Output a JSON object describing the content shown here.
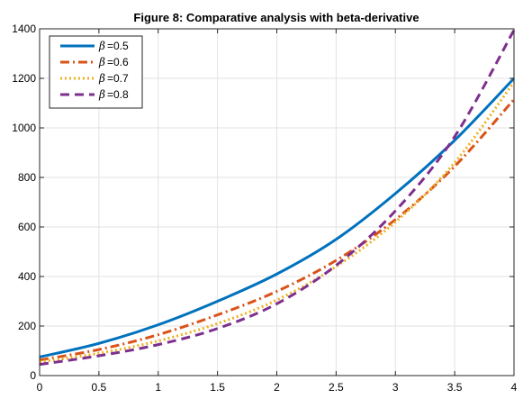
{
  "chart_data": {
    "type": "line",
    "title": "Figure 8: Comparative analysis with beta-derivative",
    "xlabel": "",
    "ylabel": "",
    "xlim": [
      0,
      4
    ],
    "ylim": [
      0,
      1400
    ],
    "xticks": [
      0,
      0.5,
      1,
      1.5,
      2,
      2.5,
      3,
      3.5,
      4
    ],
    "xtick_labels": [
      "0",
      "0.5",
      "1",
      "1.5",
      "2",
      "2.5",
      "3",
      "3.5",
      "4"
    ],
    "yticks": [
      0,
      200,
      400,
      600,
      800,
      1000,
      1200,
      1400
    ],
    "ytick_labels": [
      "0",
      "200",
      "400",
      "600",
      "800",
      "1000",
      "1200",
      "1400"
    ],
    "grid": true,
    "legend_position": "top-left",
    "legend_symbol": "β",
    "x": [
      0,
      0.5,
      1,
      1.5,
      2,
      2.5,
      3,
      3.5,
      4
    ],
    "series": [
      {
        "name": "=0.5",
        "color": "#0072BD",
        "style": "solid",
        "values": [
          75,
          130,
          205,
          300,
          410,
          550,
          735,
          950,
          1200
        ]
      },
      {
        "name": "=0.6",
        "color": "#D95319",
        "style": "dashdot",
        "values": [
          63,
          105,
          165,
          245,
          340,
          465,
          630,
          845,
          1115
        ]
      },
      {
        "name": "=0.7",
        "color": "#EDB120",
        "style": "dotted",
        "values": [
          55,
          90,
          140,
          210,
          305,
          440,
          620,
          860,
          1185
        ]
      },
      {
        "name": "=0.8",
        "color": "#7E2F8E",
        "style": "dashed",
        "values": [
          45,
          80,
          125,
          190,
          290,
          445,
          665,
          965,
          1395
        ]
      }
    ]
  }
}
